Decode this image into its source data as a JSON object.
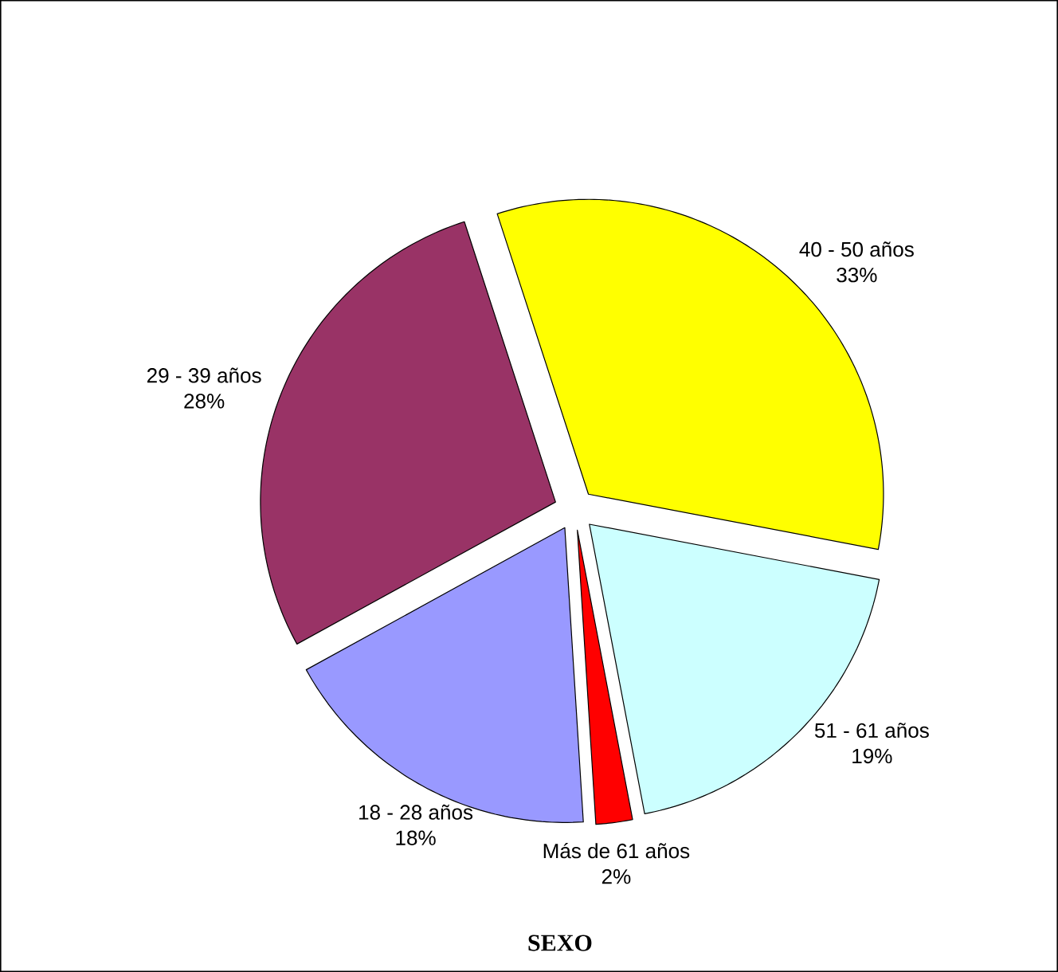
{
  "chart_data": {
    "type": "pie",
    "title": "SEXO",
    "categories": [
      "40 - 50 años",
      "51 - 61 años",
      "Más de 61 años",
      "18 - 28 años",
      "29 - 39 años"
    ],
    "values": [
      33,
      19,
      2,
      18,
      28
    ],
    "value_labels": [
      "33%",
      "19%",
      "2%",
      "18%",
      "28%"
    ],
    "colors": [
      "#ffff00",
      "#ccffff",
      "#ff0000",
      "#9999ff",
      "#993366"
    ]
  }
}
